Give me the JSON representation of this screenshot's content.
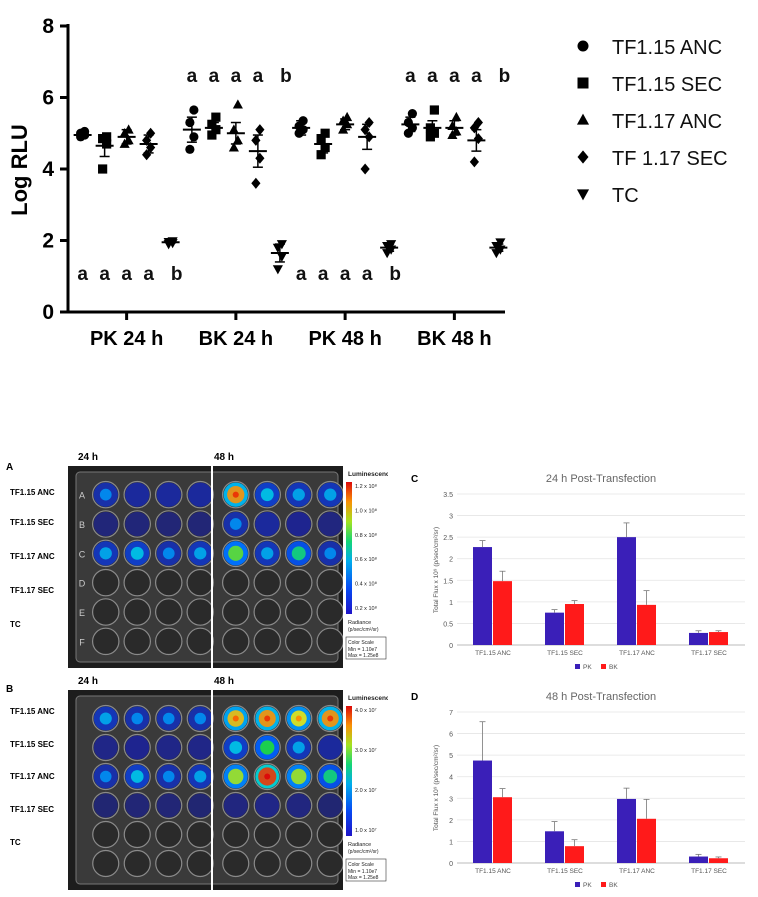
{
  "chart_data": [
    {
      "id": "top",
      "type": "scatter",
      "ylabel": "Log RLU",
      "ylim": [
        0,
        8
      ],
      "yticks": [
        0,
        2,
        4,
        6,
        8
      ],
      "categories": [
        "PK 24 h",
        "BK 24 h",
        "PK 48 h",
        "BK 48 h"
      ],
      "series": [
        {
          "name": "TF1.15 ANC",
          "marker": "circle",
          "mean": [
            4.95,
            5.1,
            5.15,
            5.25
          ],
          "err": [
            0.08,
            0.35,
            0.2,
            0.2
          ],
          "points": [
            [
              4.9,
              4.95,
              5.0,
              5.05
            ],
            [
              4.55,
              4.9,
              5.3,
              5.65
            ],
            [
              5.0,
              5.1,
              5.2,
              5.35
            ],
            [
              5.0,
              5.15,
              5.3,
              5.55
            ]
          ]
        },
        {
          "name": "TF1.15 SEC",
          "marker": "square",
          "mean": [
            4.65,
            5.15,
            4.7,
            5.15
          ],
          "err": [
            0.3,
            0.15,
            0.25,
            0.2
          ],
          "points": [
            [
              4.0,
              4.7,
              4.85,
              4.9
            ],
            [
              4.95,
              5.1,
              5.25,
              5.45
            ],
            [
              4.4,
              4.6,
              4.85,
              5.0
            ],
            [
              4.9,
              5.0,
              5.15,
              5.65
            ]
          ]
        },
        {
          "name": "TF1.17 ANC",
          "marker": "triangle-up",
          "mean": [
            4.9,
            5.0,
            5.25,
            5.15
          ],
          "err": [
            0.2,
            0.3,
            0.15,
            0.2
          ],
          "points": [
            [
              4.7,
              4.8,
              5.0,
              5.1
            ],
            [
              4.6,
              4.8,
              5.1,
              5.8
            ],
            [
              5.1,
              5.25,
              5.35,
              5.45
            ],
            [
              4.95,
              5.05,
              5.2,
              5.45
            ]
          ]
        },
        {
          "name": "TF 1.17 SEC",
          "marker": "diamond",
          "mean": [
            4.7,
            4.5,
            4.9,
            4.8
          ],
          "err": [
            0.25,
            0.45,
            0.35,
            0.3
          ],
          "points": [
            [
              4.4,
              4.6,
              4.8,
              5.0
            ],
            [
              3.6,
              4.3,
              4.8,
              5.1
            ],
            [
              4.0,
              4.9,
              5.1,
              5.3
            ],
            [
              4.2,
              4.85,
              5.15,
              5.3
            ]
          ]
        },
        {
          "name": "TC",
          "marker": "triangle-down",
          "mean": [
            1.95,
            1.65,
            1.8,
            1.8
          ],
          "err": [
            0.02,
            0.25,
            0.1,
            0.1
          ],
          "points": [
            [
              1.9,
              1.93,
              1.96,
              1.98
            ],
            [
              1.2,
              1.55,
              1.8,
              1.9
            ],
            [
              1.65,
              1.75,
              1.85,
              1.9
            ],
            [
              1.65,
              1.75,
              1.85,
              1.95
            ]
          ]
        }
      ],
      "group_letters": [
        {
          "category": 0,
          "position": "below",
          "letters": [
            "a",
            "a",
            "a",
            "a",
            "b"
          ]
        },
        {
          "category": 1,
          "position": "above",
          "letters": [
            "a",
            "a",
            "a",
            "a",
            "b"
          ]
        },
        {
          "category": 2,
          "position": "below",
          "letters": [
            "a",
            "a",
            "a",
            "a",
            "b"
          ]
        },
        {
          "category": 3,
          "position": "above",
          "letters": [
            "a",
            "a",
            "a",
            "a",
            "b"
          ]
        }
      ],
      "legend_position": "right"
    },
    {
      "id": "C",
      "panel_letter": "C",
      "type": "bar",
      "title": "24 h Post-Transfection",
      "ylabel": "Total Flux x 10⁹ (p/sec/cm²/sr)",
      "ylim": [
        0,
        3.5
      ],
      "yticks": [
        "0",
        "0.5",
        "1",
        "1.5",
        "2",
        "2.5",
        "3",
        "3.5"
      ],
      "categories": [
        "TF1.15 ANC",
        "TF1.15 SEC",
        "TF1.17 ANC",
        "TF1.17 SEC"
      ],
      "series": [
        {
          "name": "PK",
          "color": "#3a1fb8",
          "values": [
            2.27,
            0.75,
            2.5,
            0.28
          ],
          "err": [
            0.15,
            0.07,
            0.33,
            0.05
          ]
        },
        {
          "name": "BK",
          "color": "#ff1a1a",
          "values": [
            1.48,
            0.95,
            0.93,
            0.3
          ],
          "err": [
            0.23,
            0.08,
            0.33,
            0.03
          ]
        }
      ],
      "legend_position": "bottom"
    },
    {
      "id": "D",
      "panel_letter": "D",
      "type": "bar",
      "title": "48 h Post-Transfection",
      "ylabel": "Total Flux x 10⁹ (p/sec/cm²/sr)",
      "ylim": [
        0,
        7
      ],
      "yticks": [
        "0",
        "1",
        "2",
        "3",
        "4",
        "5",
        "6",
        "7"
      ],
      "categories": [
        "TF1.15 ANC",
        "TF1.15 SEC",
        "TF1.17 ANC",
        "TF1.17 SEC"
      ],
      "series": [
        {
          "name": "PK",
          "color": "#3a1fb8",
          "values": [
            4.75,
            1.47,
            2.97,
            0.3
          ],
          "err": [
            1.8,
            0.45,
            0.5,
            0.1
          ]
        },
        {
          "name": "BK",
          "color": "#ff1a1a",
          "values": [
            3.05,
            0.78,
            2.05,
            0.22
          ],
          "err": [
            0.4,
            0.3,
            0.9,
            0.06
          ]
        }
      ],
      "legend_position": "bottom"
    }
  ],
  "panelA": {
    "letter": "A",
    "time_labels": [
      "24 h",
      "48 h"
    ],
    "row_labels": [
      "TF1.15 ANC",
      "TF1.15 SEC",
      "TF1.17 ANC",
      "TF1.17 SEC",
      "TC"
    ],
    "plate_letters": [
      "A",
      "B",
      "C",
      "D",
      "E",
      "F"
    ],
    "colorbar": {
      "title": "Luminescence",
      "ticks": [
        "1.2 x 10⁸",
        "1.0 x 10⁸",
        "0.8 x 10⁸",
        "0.6 x 10⁸",
        "0.4 x 10⁸",
        "0.2 x 10⁸"
      ],
      "unit_label": "Radiance",
      "unit": "(p/sec/cm²/sr)",
      "scale_title": "Color Scale",
      "scale_min": "Min = 1.10e7",
      "scale_max": "Max = 1.25e8"
    },
    "well_intensity": [
      [
        0.35,
        0.3,
        0.3,
        0.3,
        0.85,
        0.45,
        0.4,
        0.4
      ],
      [
        0.12,
        0.12,
        0.1,
        0.1,
        0.35,
        0.3,
        0.25,
        0.15
      ],
      [
        0.4,
        0.45,
        0.35,
        0.4,
        0.65,
        0.4,
        0.55,
        0.35
      ],
      [
        0,
        0,
        0,
        0,
        0,
        0,
        0,
        0
      ],
      [
        0,
        0,
        0,
        0,
        0,
        0,
        0,
        0
      ],
      [
        0,
        0,
        0,
        0,
        0,
        0,
        0,
        0
      ]
    ]
  },
  "panelB": {
    "letter": "B",
    "time_labels": [
      "24 h",
      "48 h"
    ],
    "row_labels": [
      "TF1.15 ANC",
      "TF1.15 SEC",
      "TF1.17 ANC",
      "TF1.17 SEC",
      "TC"
    ],
    "colorbar": {
      "title": "Luminescence",
      "ticks": [
        "4.0 x 10⁷",
        "3.0 x 10⁷",
        "2.0 x 10⁷",
        "1.0 x 10⁷"
      ],
      "unit_label": "Radiance",
      "unit": "(p/sec/cm²/sr)",
      "scale_title": "Color Scale",
      "scale_min": "Min = 1.10e7",
      "scale_max": "Max = 1.25e8"
    },
    "well_intensity": [
      [
        0.4,
        0.35,
        0.35,
        0.35,
        0.8,
        0.85,
        0.75,
        0.85
      ],
      [
        0.2,
        0.25,
        0.2,
        0.2,
        0.45,
        0.6,
        0.4,
        0.3
      ],
      [
        0.35,
        0.45,
        0.35,
        0.4,
        0.7,
        0.95,
        0.7,
        0.55
      ],
      [
        0.08,
        0.1,
        0.1,
        0.08,
        0.15,
        0.2,
        0.15,
        0.08
      ],
      [
        0,
        0,
        0,
        0,
        0,
        0,
        0,
        0
      ],
      [
        0,
        0,
        0,
        0,
        0,
        0,
        0,
        0
      ]
    ]
  }
}
